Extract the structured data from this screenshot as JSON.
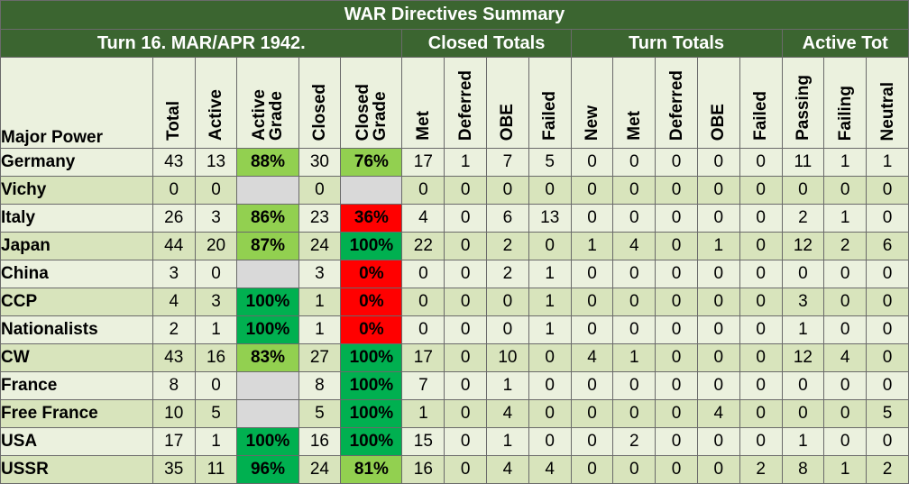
{
  "title": "WAR Directives Summary",
  "groups": {
    "turn": "Turn 16.  MAR/APR 1942.",
    "closed_totals": "Closed Totals",
    "turn_totals": "Turn Totals",
    "active_tot": "Active Tot"
  },
  "headers": {
    "major_power": "Major Power",
    "total": "Total",
    "active": "Active",
    "active_grade": "Active\nGrade",
    "closed": "Closed",
    "closed_grade": "Closed\nGrade",
    "ct_met": "Met",
    "ct_deferred": "Deferred",
    "ct_obe": "OBE",
    "ct_failed": "Failed",
    "tt_new": "New",
    "tt_met": "Met",
    "tt_deferred": "Deferred",
    "tt_obe": "OBE",
    "tt_failed": "Failed",
    "at_passing": "Passing",
    "at_failing": "Failing",
    "at_neutral": "Neutral"
  },
  "colors": {
    "header_green": "#3b6530",
    "row_light": "#ebf1de",
    "row_dark": "#d8e4bc",
    "grade_excellent": "#00b050",
    "grade_good": "#92d050",
    "grade_fail": "#ff0000",
    "grade_none": "#d9d9d9"
  },
  "rows": [
    {
      "power": "Germany",
      "total": "43",
      "active": "13",
      "active_grade": "88%",
      "active_grade_level": "good",
      "closed": "30",
      "closed_grade": "76%",
      "closed_grade_level": "good",
      "ct_met": "17",
      "ct_deferred": "1",
      "ct_obe": "7",
      "ct_failed": "5",
      "tt_new": "0",
      "tt_met": "0",
      "tt_deferred": "0",
      "tt_obe": "0",
      "tt_failed": "0",
      "at_passing": "11",
      "at_failing": "1",
      "at_neutral": "1"
    },
    {
      "power": "Vichy",
      "total": "0",
      "active": "0",
      "active_grade": "",
      "active_grade_level": "none",
      "closed": "0",
      "closed_grade": "",
      "closed_grade_level": "none",
      "ct_met": "0",
      "ct_deferred": "0",
      "ct_obe": "0",
      "ct_failed": "0",
      "tt_new": "0",
      "tt_met": "0",
      "tt_deferred": "0",
      "tt_obe": "0",
      "tt_failed": "0",
      "at_passing": "0",
      "at_failing": "0",
      "at_neutral": "0"
    },
    {
      "power": "Italy",
      "total": "26",
      "active": "3",
      "active_grade": "86%",
      "active_grade_level": "good",
      "closed": "23",
      "closed_grade": "36%",
      "closed_grade_level": "fail",
      "ct_met": "4",
      "ct_deferred": "0",
      "ct_obe": "6",
      "ct_failed": "13",
      "tt_new": "0",
      "tt_met": "0",
      "tt_deferred": "0",
      "tt_obe": "0",
      "tt_failed": "0",
      "at_passing": "2",
      "at_failing": "1",
      "at_neutral": "0"
    },
    {
      "power": "Japan",
      "total": "44",
      "active": "20",
      "active_grade": "87%",
      "active_grade_level": "good",
      "closed": "24",
      "closed_grade": "100%",
      "closed_grade_level": "excellent",
      "ct_met": "22",
      "ct_deferred": "0",
      "ct_obe": "2",
      "ct_failed": "0",
      "tt_new": "1",
      "tt_met": "4",
      "tt_deferred": "0",
      "tt_obe": "1",
      "tt_failed": "0",
      "at_passing": "12",
      "at_failing": "2",
      "at_neutral": "6"
    },
    {
      "power": "China",
      "total": "3",
      "active": "0",
      "active_grade": "",
      "active_grade_level": "none",
      "closed": "3",
      "closed_grade": "0%",
      "closed_grade_level": "fail",
      "ct_met": "0",
      "ct_deferred": "0",
      "ct_obe": "2",
      "ct_failed": "1",
      "tt_new": "0",
      "tt_met": "0",
      "tt_deferred": "0",
      "tt_obe": "0",
      "tt_failed": "0",
      "at_passing": "0",
      "at_failing": "0",
      "at_neutral": "0"
    },
    {
      "power": "CCP",
      "total": "4",
      "active": "3",
      "active_grade": "100%",
      "active_grade_level": "excellent",
      "closed": "1",
      "closed_grade": "0%",
      "closed_grade_level": "fail",
      "ct_met": "0",
      "ct_deferred": "0",
      "ct_obe": "0",
      "ct_failed": "1",
      "tt_new": "0",
      "tt_met": "0",
      "tt_deferred": "0",
      "tt_obe": "0",
      "tt_failed": "0",
      "at_passing": "3",
      "at_failing": "0",
      "at_neutral": "0"
    },
    {
      "power": "Nationalists",
      "total": "2",
      "active": "1",
      "active_grade": "100%",
      "active_grade_level": "excellent",
      "closed": "1",
      "closed_grade": "0%",
      "closed_grade_level": "fail",
      "ct_met": "0",
      "ct_deferred": "0",
      "ct_obe": "0",
      "ct_failed": "1",
      "tt_new": "0",
      "tt_met": "0",
      "tt_deferred": "0",
      "tt_obe": "0",
      "tt_failed": "0",
      "at_passing": "1",
      "at_failing": "0",
      "at_neutral": "0"
    },
    {
      "power": "CW",
      "total": "43",
      "active": "16",
      "active_grade": "83%",
      "active_grade_level": "good",
      "closed": "27",
      "closed_grade": "100%",
      "closed_grade_level": "excellent",
      "ct_met": "17",
      "ct_deferred": "0",
      "ct_obe": "10",
      "ct_failed": "0",
      "tt_new": "4",
      "tt_met": "1",
      "tt_deferred": "0",
      "tt_obe": "0",
      "tt_failed": "0",
      "at_passing": "12",
      "at_failing": "4",
      "at_neutral": "0"
    },
    {
      "power": "France",
      "total": "8",
      "active": "0",
      "active_grade": "",
      "active_grade_level": "none",
      "closed": "8",
      "closed_grade": "100%",
      "closed_grade_level": "excellent",
      "ct_met": "7",
      "ct_deferred": "0",
      "ct_obe": "1",
      "ct_failed": "0",
      "tt_new": "0",
      "tt_met": "0",
      "tt_deferred": "0",
      "tt_obe": "0",
      "tt_failed": "0",
      "at_passing": "0",
      "at_failing": "0",
      "at_neutral": "0"
    },
    {
      "power": "Free France",
      "total": "10",
      "active": "5",
      "active_grade": "",
      "active_grade_level": "none",
      "closed": "5",
      "closed_grade": "100%",
      "closed_grade_level": "excellent",
      "ct_met": "1",
      "ct_deferred": "0",
      "ct_obe": "4",
      "ct_failed": "0",
      "tt_new": "0",
      "tt_met": "0",
      "tt_deferred": "0",
      "tt_obe": "4",
      "tt_failed": "0",
      "at_passing": "0",
      "at_failing": "0",
      "at_neutral": "5"
    },
    {
      "power": "USA",
      "total": "17",
      "active": "1",
      "active_grade": "100%",
      "active_grade_level": "excellent",
      "closed": "16",
      "closed_grade": "100%",
      "closed_grade_level": "excellent",
      "ct_met": "15",
      "ct_deferred": "0",
      "ct_obe": "1",
      "ct_failed": "0",
      "tt_new": "0",
      "tt_met": "2",
      "tt_deferred": "0",
      "tt_obe": "0",
      "tt_failed": "0",
      "at_passing": "1",
      "at_failing": "0",
      "at_neutral": "0"
    },
    {
      "power": "USSR",
      "total": "35",
      "active": "11",
      "active_grade": "96%",
      "active_grade_level": "excellent",
      "closed": "24",
      "closed_grade": "81%",
      "closed_grade_level": "good",
      "ct_met": "16",
      "ct_deferred": "0",
      "ct_obe": "4",
      "ct_failed": "4",
      "tt_new": "0",
      "tt_met": "0",
      "tt_deferred": "0",
      "tt_obe": "0",
      "tt_failed": "2",
      "at_passing": "8",
      "at_failing": "1",
      "at_neutral": "2"
    }
  ]
}
